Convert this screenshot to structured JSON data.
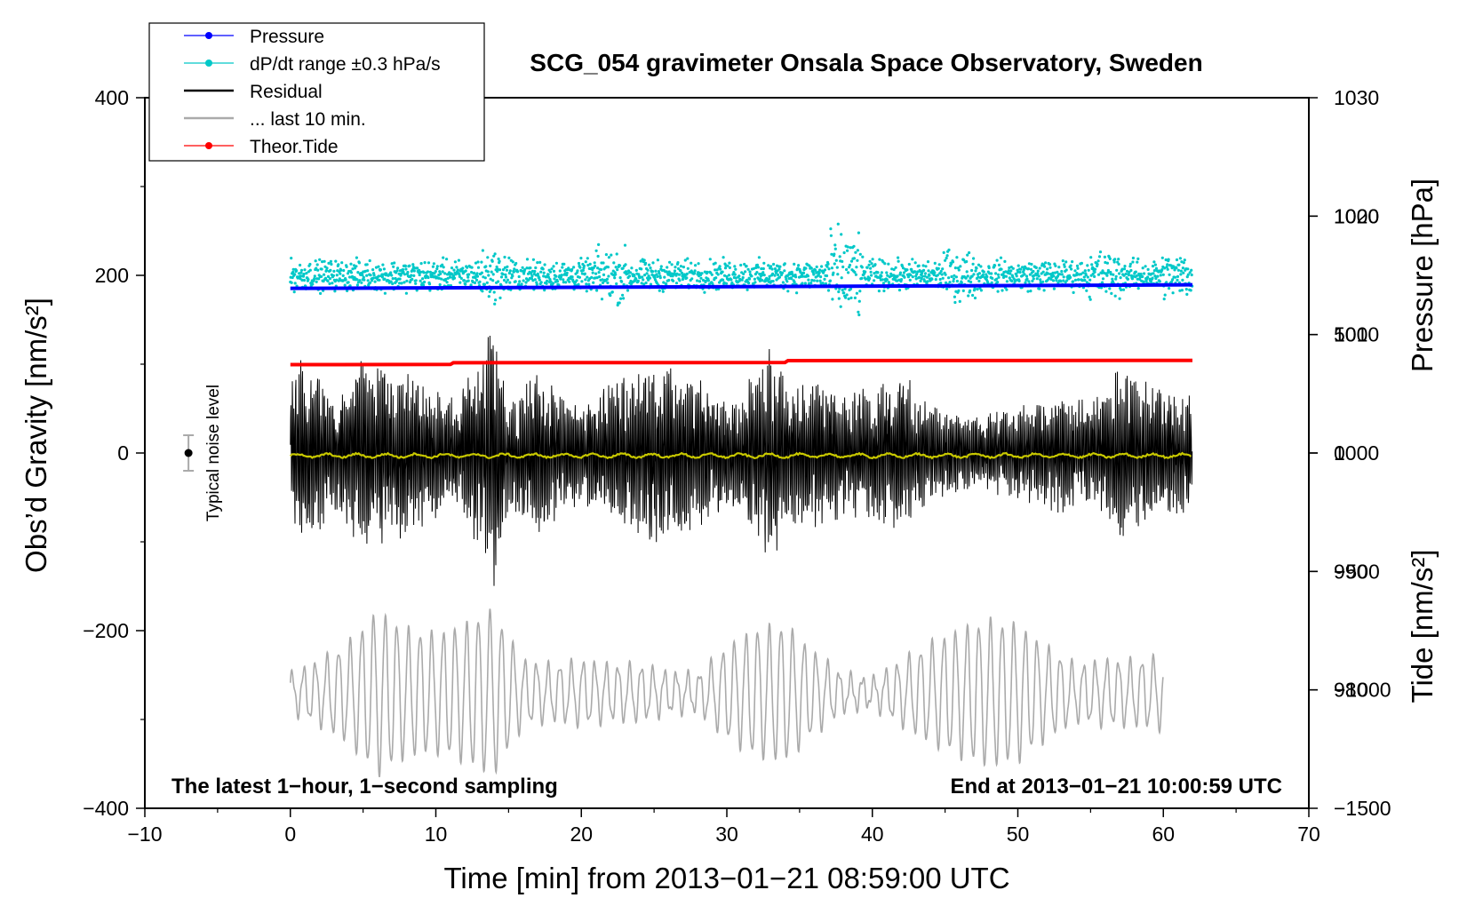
{
  "chart_data": {
    "type": "line",
    "title": "SCG_054 gravimeter Onsala Space Observatory, Sweden",
    "xlabel": "Time [min] from 2013−01−21 08:59:00 UTC",
    "ylabel": "Obs’d Gravity [nm/s²]",
    "ylabel_right_top": "Pressure [hPa]",
    "ylabel_right_bottom": "Tide [nm/s²]",
    "xlim": [
      -10,
      70
    ],
    "ylim": [
      -400,
      400
    ],
    "pressure_lim": [
      970,
      1030
    ],
    "tide_lim": [
      -1500,
      1500
    ],
    "x_ticks": [
      "−10",
      "0",
      "10",
      "20",
      "30",
      "40",
      "50",
      "60",
      "70"
    ],
    "y_ticks": [
      "400",
      "200",
      "0",
      "−200",
      "−400"
    ],
    "pressure_ticks": [
      "1030",
      "1020",
      "1010",
      "1000",
      "990",
      "980"
    ],
    "tide_ticks": [
      "1000",
      "500",
      "0",
      "−500",
      "−1000",
      "−1500"
    ],
    "annotation_left": "The latest 1−hour, 1−second sampling",
    "annotation_right": "End at 2013−01−21 10:00:59 UTC",
    "noise_label": "Typical noise level",
    "noise_marker": {
      "x": -7,
      "y": 0,
      "err": 20
    },
    "legend": [
      {
        "label": "Pressure",
        "color": "#0000ff",
        "marker": true
      },
      {
        "label": "dP/dt range ±0.3 hPa/s",
        "color": "#00c8c8",
        "marker": true
      },
      {
        "label": "Residual",
        "color": "#000000",
        "marker": false
      },
      {
        "label": "... last 10 min.",
        "color": "#aaaaaa",
        "marker": false
      },
      {
        "label": "Theor.Tide",
        "color": "#ff0000",
        "marker": true
      }
    ],
    "series": [
      {
        "name": "Pressure",
        "axis": "pressure",
        "color": "#0000ff",
        "x": [
          0,
          62
        ],
        "values": [
          1013.9,
          1014.2
        ]
      },
      {
        "name": "dP/dt range ±0.3 hPa/s",
        "axis": "gravity",
        "color": "#00c8c8",
        "center": 200,
        "spread": 8,
        "x_range": [
          0,
          62
        ]
      },
      {
        "name": "Residual",
        "axis": "gravity",
        "color": "#000000",
        "x_range": [
          0,
          62
        ],
        "envelope": [
          [
            0,
            85
          ],
          [
            1,
            115
          ],
          [
            3,
            70
          ],
          [
            5,
            110
          ],
          [
            8,
            95
          ],
          [
            10,
            75
          ],
          [
            12,
            80
          ],
          [
            14,
            150
          ],
          [
            15,
            60
          ],
          [
            17,
            95
          ],
          [
            20,
            55
          ],
          [
            22,
            85
          ],
          [
            25,
            105
          ],
          [
            27,
            95
          ],
          [
            29,
            75
          ],
          [
            31,
            65
          ],
          [
            33,
            140
          ],
          [
            34,
            80
          ],
          [
            36,
            85
          ],
          [
            38,
            75
          ],
          [
            40,
            80
          ],
          [
            42,
            95
          ],
          [
            44,
            55
          ],
          [
            47,
            40
          ],
          [
            50,
            55
          ],
          [
            53,
            70
          ],
          [
            55,
            60
          ],
          [
            57,
            100
          ],
          [
            60,
            75
          ],
          [
            62,
            65
          ]
        ]
      },
      {
        "name": "Residual smooth",
        "axis": "gravity",
        "color": "#c8c800",
        "x_range": [
          0,
          62
        ],
        "value": -3
      },
      {
        "name": "... last 10 min.",
        "axis": "gravity",
        "color": "#aaaaaa",
        "x_range": [
          0,
          60
        ],
        "envelope": [
          [
            0,
            20
          ],
          [
            2,
            35
          ],
          [
            4,
            55
          ],
          [
            6,
            90
          ],
          [
            8,
            70
          ],
          [
            10,
            65
          ],
          [
            12,
            75
          ],
          [
            13,
            85
          ],
          [
            14,
            90
          ],
          [
            16,
            35
          ],
          [
            18,
            30
          ],
          [
            20,
            35
          ],
          [
            22,
            30
          ],
          [
            24,
            30
          ],
          [
            26,
            22
          ],
          [
            28,
            20
          ],
          [
            30,
            50
          ],
          [
            32,
            70
          ],
          [
            34,
            75
          ],
          [
            36,
            45
          ],
          [
            38,
            20
          ],
          [
            40,
            15
          ],
          [
            42,
            35
          ],
          [
            44,
            55
          ],
          [
            46,
            70
          ],
          [
            48,
            80
          ],
          [
            50,
            75
          ],
          [
            52,
            50
          ],
          [
            54,
            30
          ],
          [
            56,
            35
          ],
          [
            58,
            35
          ],
          [
            60,
            40
          ]
        ]
      },
      {
        "name": "Theor.Tide",
        "axis": "tide",
        "color": "#ff0000",
        "x": [
          0,
          11,
          11.2,
          34,
          34.2,
          62
        ],
        "values": [
          373,
          374,
          381,
          382,
          390,
          391
        ]
      }
    ]
  }
}
